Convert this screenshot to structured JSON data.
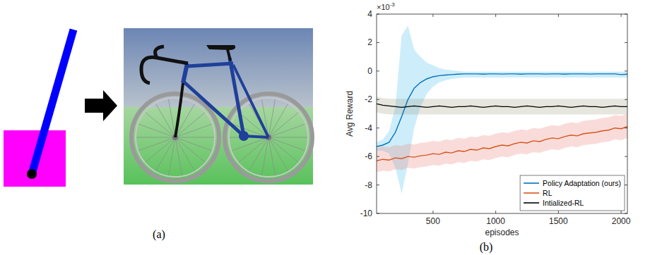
{
  "figure": {
    "panel_labels": [
      "(a)",
      "(b)"
    ]
  },
  "chart_data": {
    "type": "line",
    "x_label": "episodes",
    "y_label": "Avg Reward",
    "annotations": [
      {
        "text": "×10",
        "superscript": "-3"
      }
    ],
    "xlim": [
      50,
      2050
    ],
    "xticks": [
      500,
      1000,
      1500,
      2000
    ],
    "ylim": [
      -10,
      4
    ],
    "yticks": [
      -10,
      -8,
      -6,
      -4,
      -2,
      0,
      2,
      4
    ],
    "grid": false,
    "legend": "lower right",
    "x": [
      50,
      100,
      150,
      200,
      250,
      300,
      350,
      400,
      450,
      500,
      550,
      600,
      650,
      700,
      750,
      800,
      850,
      900,
      950,
      1000,
      1050,
      1100,
      1150,
      1200,
      1250,
      1300,
      1350,
      1400,
      1450,
      1500,
      1550,
      1600,
      1650,
      1700,
      1750,
      1800,
      1850,
      1900,
      1950,
      2000,
      2050
    ],
    "series": [
      {
        "name": "Policy Adaptation (ours)",
        "color": "#0072bd",
        "values": [
          -5.3,
          -5.2,
          -5.0,
          -4.3,
          -3.2,
          -2.0,
          -1.2,
          -0.8,
          -0.55,
          -0.4,
          -0.32,
          -0.28,
          -0.25,
          -0.22,
          -0.2,
          -0.2,
          -0.2,
          -0.22,
          -0.2,
          -0.2,
          -0.21,
          -0.2,
          -0.2,
          -0.22,
          -0.2,
          -0.2,
          -0.2,
          -0.21,
          -0.2,
          -0.2,
          -0.22,
          -0.2,
          -0.2,
          -0.2,
          -0.21,
          -0.2,
          -0.2,
          -0.2,
          -0.2,
          -0.25,
          -0.22
        ],
        "upper": [
          -5.0,
          -4.8,
          -4.2,
          -2.5,
          2.5,
          3.2,
          1.5,
          1.0,
          0.6,
          0.4,
          0.2,
          0.1,
          0.05,
          0.0,
          -0.05,
          -0.05,
          -0.05,
          -0.05,
          -0.05,
          -0.05,
          -0.05,
          -0.05,
          -0.05,
          -0.05,
          -0.05,
          -0.05,
          -0.05,
          -0.05,
          -0.05,
          -0.05,
          -0.05,
          -0.05,
          -0.05,
          -0.05,
          -0.05,
          -0.05,
          -0.05,
          -0.05,
          -0.05,
          -0.05,
          -0.05
        ],
        "lower": [
          -5.6,
          -5.6,
          -5.8,
          -6.8,
          -8.6,
          -6.5,
          -4.0,
          -2.5,
          -1.6,
          -1.1,
          -0.8,
          -0.65,
          -0.55,
          -0.5,
          -0.45,
          -0.45,
          -0.45,
          -0.45,
          -0.45,
          -0.45,
          -0.45,
          -0.45,
          -0.45,
          -0.45,
          -0.45,
          -0.45,
          -0.45,
          -0.45,
          -0.45,
          -0.45,
          -0.45,
          -0.45,
          -0.45,
          -0.45,
          -0.45,
          -0.45,
          -0.45,
          -0.45,
          -0.45,
          -0.45,
          -0.45
        ]
      },
      {
        "name": "RL",
        "color": "#d95319",
        "values": [
          -6.3,
          -6.2,
          -6.25,
          -6.1,
          -6.15,
          -6.0,
          -6.05,
          -5.95,
          -5.9,
          -5.8,
          -5.85,
          -5.7,
          -5.75,
          -5.6,
          -5.65,
          -5.5,
          -5.55,
          -5.4,
          -5.45,
          -5.3,
          -5.2,
          -5.25,
          -5.1,
          -5.0,
          -5.05,
          -4.9,
          -4.95,
          -4.8,
          -4.7,
          -4.75,
          -4.6,
          -4.5,
          -4.55,
          -4.4,
          -4.35,
          -4.3,
          -4.2,
          -4.15,
          -4.0,
          -4.05,
          -3.9
        ],
        "upper": [
          -5.4,
          -5.3,
          -5.35,
          -5.2,
          -5.25,
          -5.1,
          -5.15,
          -5.05,
          -5.0,
          -4.9,
          -4.95,
          -4.8,
          -4.85,
          -4.7,
          -4.75,
          -4.6,
          -4.65,
          -4.5,
          -4.55,
          -4.4,
          -4.3,
          -4.35,
          -4.2,
          -4.1,
          -4.15,
          -4.0,
          -4.05,
          -3.9,
          -3.8,
          -3.85,
          -3.7,
          -3.6,
          -3.65,
          -3.5,
          -3.45,
          -3.4,
          -3.3,
          -3.25,
          -3.1,
          -3.15,
          -3.0
        ],
        "lower": [
          -7.1,
          -7.0,
          -7.05,
          -6.9,
          -6.95,
          -6.8,
          -6.85,
          -6.75,
          -6.7,
          -6.6,
          -6.65,
          -6.5,
          -6.55,
          -6.4,
          -6.45,
          -6.3,
          -6.35,
          -6.2,
          -6.25,
          -6.1,
          -6.0,
          -6.05,
          -5.9,
          -5.8,
          -5.85,
          -5.7,
          -5.75,
          -5.6,
          -5.5,
          -5.55,
          -5.4,
          -5.3,
          -5.35,
          -5.2,
          -5.15,
          -5.1,
          -5.0,
          -4.95,
          -4.8,
          -4.85,
          -4.7
        ]
      },
      {
        "name": "Intialized-RL",
        "color": "#000000",
        "values": [
          -2.3,
          -2.4,
          -2.45,
          -2.5,
          -2.55,
          -2.5,
          -2.45,
          -2.5,
          -2.55,
          -2.5,
          -2.45,
          -2.5,
          -2.55,
          -2.5,
          -2.5,
          -2.45,
          -2.5,
          -2.55,
          -2.5,
          -2.45,
          -2.5,
          -2.5,
          -2.55,
          -2.5,
          -2.45,
          -2.5,
          -2.55,
          -2.5,
          -2.5,
          -2.45,
          -2.5,
          -2.55,
          -2.5,
          -2.45,
          -2.5,
          -2.5,
          -2.55,
          -2.5,
          -2.45,
          -2.5,
          -2.5
        ],
        "upper": [
          -1.8,
          -1.9,
          -1.95,
          -1.95,
          -1.95,
          -1.95,
          -1.95,
          -1.95,
          -1.95,
          -1.95,
          -1.95,
          -1.95,
          -1.95,
          -1.95,
          -1.95,
          -1.95,
          -1.95,
          -1.95,
          -1.95,
          -1.95,
          -1.95,
          -1.95,
          -1.95,
          -1.95,
          -1.95,
          -1.95,
          -1.95,
          -1.95,
          -1.95,
          -1.95,
          -1.95,
          -1.95,
          -1.95,
          -1.95,
          -1.95,
          -1.95,
          -1.95,
          -1.95,
          -1.95,
          -1.95,
          -1.95
        ],
        "lower": [
          -2.9,
          -3.0,
          -3.05,
          -3.05,
          -3.05,
          -3.05,
          -3.05,
          -3.05,
          -3.05,
          -3.05,
          -3.05,
          -3.05,
          -3.05,
          -3.05,
          -3.05,
          -3.05,
          -3.05,
          -3.05,
          -3.05,
          -3.05,
          -3.05,
          -3.05,
          -3.05,
          -3.05,
          -3.05,
          -3.05,
          -3.05,
          -3.05,
          -3.05,
          -3.05,
          -3.05,
          -3.05,
          -3.05,
          -3.05,
          -3.05,
          -3.05,
          -3.05,
          -3.05,
          -3.05,
          -3.05,
          -3.05
        ]
      }
    ]
  }
}
